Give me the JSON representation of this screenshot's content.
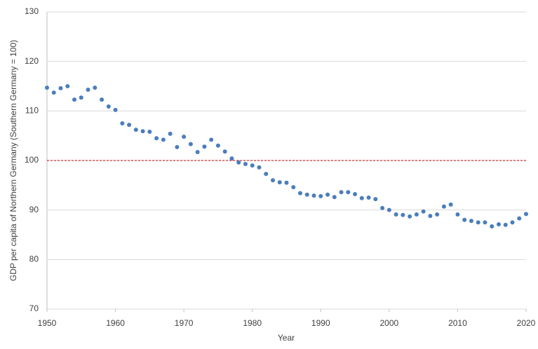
{
  "chart_data": {
    "type": "scatter",
    "xlabel": "Year",
    "ylabel": "GDP per capita of Northern Germany (Southern Germany = 100)",
    "x": [
      1950,
      1951,
      1952,
      1953,
      1954,
      1955,
      1956,
      1957,
      1958,
      1959,
      1960,
      1961,
      1962,
      1963,
      1964,
      1965,
      1966,
      1967,
      1968,
      1969,
      1970,
      1971,
      1972,
      1973,
      1974,
      1975,
      1976,
      1977,
      1978,
      1979,
      1980,
      1981,
      1982,
      1983,
      1984,
      1985,
      1986,
      1987,
      1988,
      1989,
      1990,
      1991,
      1992,
      1993,
      1994,
      1995,
      1996,
      1997,
      1998,
      1999,
      2000,
      2001,
      2002,
      2003,
      2004,
      2005,
      2006,
      2007,
      2008,
      2009,
      2010,
      2011,
      2012,
      2013,
      2014,
      2015,
      2016,
      2017,
      2018,
      2019,
      2020
    ],
    "values": [
      114.7,
      113.7,
      114.6,
      115.0,
      112.3,
      112.7,
      114.3,
      114.7,
      112.3,
      110.9,
      110.2,
      107.5,
      107.2,
      106.2,
      105.9,
      105.8,
      104.5,
      104.2,
      105.4,
      102.7,
      104.8,
      103.3,
      101.7,
      102.8,
      104.2,
      103.0,
      101.8,
      100.4,
      99.6,
      99.3,
      99.0,
      98.6,
      97.3,
      96.0,
      95.6,
      95.5,
      94.6,
      93.4,
      93.1,
      92.9,
      92.8,
      93.1,
      92.6,
      93.6,
      93.6,
      93.2,
      92.4,
      92.5,
      92.2,
      90.4,
      90.0,
      89.1,
      89.0,
      88.7,
      89.1,
      89.7,
      88.8,
      89.1,
      90.7,
      91.1,
      89.1,
      88.0,
      87.8,
      87.5,
      87.5,
      86.7,
      87.1,
      87.0,
      87.5,
      88.3,
      89.2
    ],
    "color": "#4a7ebb",
    "reference_line": {
      "value": 100,
      "color": "#c00000"
    },
    "xlim": [
      1950,
      2020
    ],
    "xticks": [
      1950,
      1960,
      1970,
      1980,
      1990,
      2000,
      2010,
      2020
    ],
    "ylim": [
      70,
      130
    ],
    "yticks": [
      70,
      80,
      90,
      100,
      110,
      120,
      130
    ],
    "grid": true
  }
}
